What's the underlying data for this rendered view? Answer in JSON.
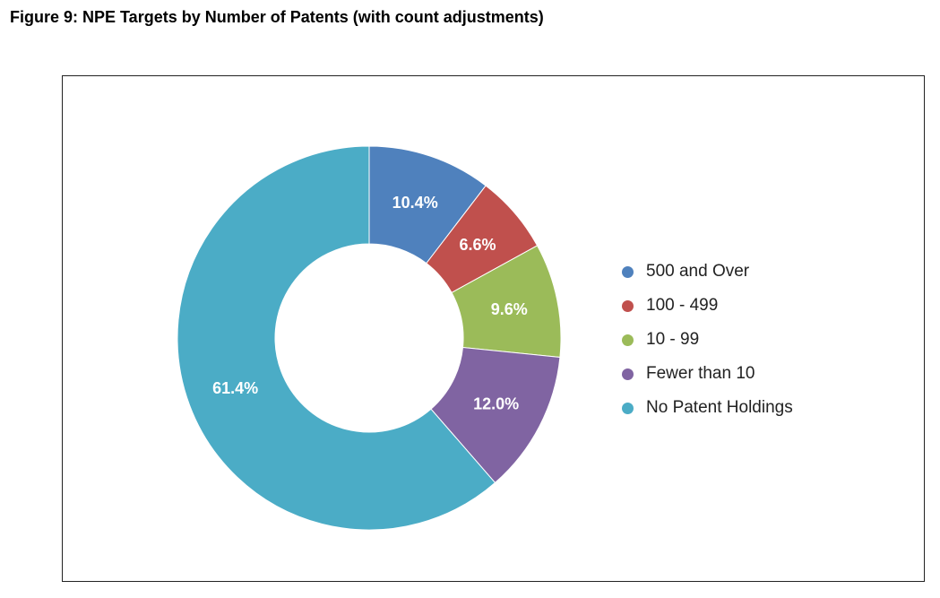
{
  "title": "Figure 9: NPE Targets by Number of Patents (with count adjustments)",
  "chart_data": {
    "type": "pie",
    "donut": true,
    "categories": [
      "500 and Over",
      "100 - 499",
      "10 - 99",
      "Fewer than 10",
      "No Patent Holdings"
    ],
    "values": [
      10.4,
      6.6,
      9.6,
      12.0,
      61.4
    ],
    "data_labels": [
      "10.4%",
      "6.6%",
      "9.6%",
      "12.0%",
      "61.4%"
    ],
    "colors": [
      "#4f81bd",
      "#c0504d",
      "#9bbb59",
      "#8064a2",
      "#4bacc6"
    ],
    "start": "12 o'clock, clockwise",
    "legend_position": "right"
  }
}
